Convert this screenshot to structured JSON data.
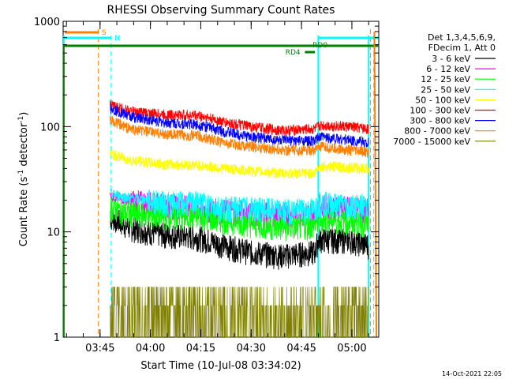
{
  "chart_data": {
    "type": "line",
    "title": "RHESSI Observing Summary Count Rates",
    "xlabel": "Start Time (10-Jul-08 03:34:02)",
    "ylabel_main": "Count Rate (s",
    "ylabel_sup1": "-1",
    "ylabel_mid": " detector",
    "ylabel_sup2": "-1",
    "ylabel_end": ")",
    "yscale": "log",
    "ylim": [
      1,
      1000
    ],
    "xlim_minutes": [
      0,
      94
    ],
    "x_tick_labels": [
      "03:45",
      "04:00",
      "04:15",
      "04:30",
      "04:45",
      "05:00"
    ],
    "x_tick_minutes": [
      11,
      26,
      41,
      56,
      71,
      86
    ],
    "y_tick_labels": [
      "1",
      "10",
      "100",
      "1000"
    ],
    "y_tick_values": [
      1,
      10,
      100,
      1000
    ],
    "legend_header": [
      "Det 1,3,4,5,6,9,",
      "FDecim 1, Att 0"
    ],
    "legend_position": "right",
    "timestamp": "14-Oct-2021 22:05",
    "series": [
      {
        "name": "3 - 6 keV",
        "color": "#000000",
        "x": [
          14,
          20,
          30,
          40,
          48,
          56,
          65,
          75,
          76,
          77,
          85,
          91
        ],
        "y": [
          14,
          11,
          9.5,
          9,
          7.5,
          6.5,
          6,
          6.5,
          8.5,
          8.5,
          8.5,
          7.5
        ]
      },
      {
        "name": "6 - 12 keV",
        "color": "#ff00ff",
        "x": [
          14,
          20,
          30,
          40,
          48,
          56,
          65,
          75,
          76,
          77,
          85,
          91
        ],
        "y": [
          22,
          20,
          18,
          17,
          16,
          15.5,
          15,
          15,
          18,
          18,
          17,
          16
        ]
      },
      {
        "name": "12 - 25 keV",
        "color": "#00ff00",
        "x": [
          14,
          20,
          30,
          40,
          48,
          56,
          65,
          75,
          76,
          77,
          85,
          91
        ],
        "y": [
          17,
          15,
          14,
          14,
          13,
          12,
          11,
          11.5,
          13,
          13,
          12.5,
          12
        ]
      },
      {
        "name": "25 - 50 keV",
        "color": "#00ffff",
        "x": [
          14,
          20,
          30,
          40,
          48,
          56,
          65,
          75,
          76,
          77,
          85,
          91
        ],
        "y": [
          23,
          21,
          19,
          19,
          17,
          17,
          16,
          16.5,
          19,
          19,
          18,
          18
        ]
      },
      {
        "name": "50 - 100 keV",
        "color": "#ffff00",
        "x": [
          14,
          20,
          30,
          40,
          48,
          56,
          65,
          75,
          76,
          77,
          85,
          91
        ],
        "y": [
          55,
          48,
          44,
          43,
          40,
          38,
          36,
          36,
          42,
          42,
          41,
          40
        ]
      },
      {
        "name": "100 - 300 keV",
        "color": "#ff0000",
        "x": [
          14,
          20,
          30,
          40,
          48,
          56,
          65,
          75,
          76,
          77,
          85,
          91
        ],
        "y": [
          160,
          140,
          130,
          128,
          110,
          100,
          92,
          95,
          100,
          103,
          100,
          95
        ]
      },
      {
        "name": "300 - 800 keV",
        "color": "#0000ff",
        "x": [
          14,
          20,
          30,
          40,
          48,
          56,
          65,
          75,
          76,
          77,
          85,
          91
        ],
        "y": [
          150,
          125,
          110,
          105,
          90,
          80,
          74,
          73,
          78,
          80,
          75,
          70
        ]
      },
      {
        "name": "800 - 7000 keV",
        "color": "#ff8000",
        "x": [
          14,
          20,
          30,
          40,
          48,
          56,
          65,
          75,
          76,
          77,
          85,
          91
        ],
        "y": [
          115,
          95,
          85,
          82,
          70,
          65,
          60,
          60,
          64,
          64,
          60,
          57
        ]
      },
      {
        "name": "7000 - 15000 keV",
        "color": "#808000",
        "x": [
          14,
          20,
          30,
          40,
          48,
          56,
          65,
          75,
          76,
          77,
          85,
          91
        ],
        "y": [
          2,
          2,
          1.8,
          2,
          2,
          1.5,
          1.5,
          2,
          2.5,
          2.5,
          2,
          2
        ]
      }
    ],
    "flags": [
      {
        "label": "S",
        "color": "#ff8000"
      },
      {
        "label": "N",
        "color": "#00ffff"
      },
      {
        "label": "RD0",
        "color": "#008000"
      },
      {
        "label": "RD4",
        "color": "#008000"
      }
    ]
  }
}
